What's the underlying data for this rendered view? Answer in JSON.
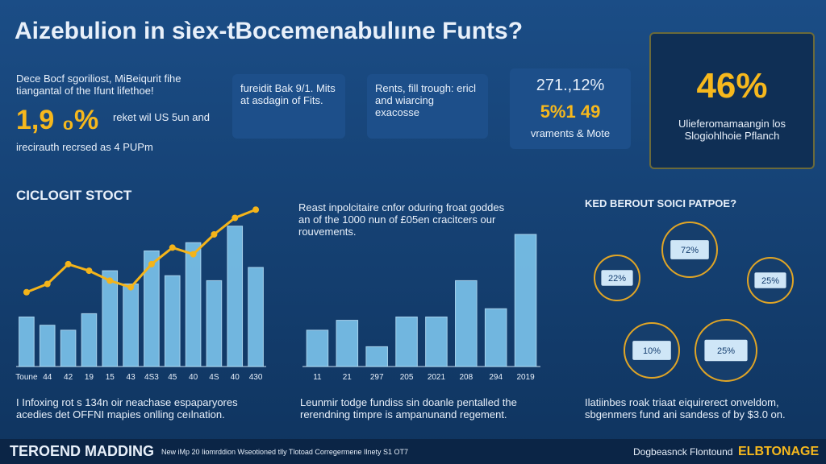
{
  "title": "Aizebulion in sìex-tBocemenabulııne Funts?",
  "intro": {
    "text": "Dece Bocf sgoriliost, MiBeiqurit fihe tiangantal of the Ifunt lifethoe!",
    "big": "1,9 ₀%",
    "line1": "reket wil US 5un and",
    "line2": "irecirauth recrsed as 4 PUPm"
  },
  "boxes": [
    {
      "text": "fureidit Bak 9/1. Mits at asdagin of Fits."
    },
    {
      "text": "Rents, fill trough: ericl and wiarcing exacosse"
    },
    {
      "big": "271.,12%",
      "mid": "5%1 49",
      "text": "vraments & Mote"
    }
  ],
  "highlight": {
    "big": "46%",
    "text": "Ulieferomamaangin los Slogiohlhoie Pflanch"
  },
  "sections": [
    {
      "heading": "CICLOGIT STOCT",
      "footer": "I Infoxing rot s 134n oir neachase espaparyores acedies det OFFNI mapies onlling ceılnation."
    },
    {
      "heading": "Reast inpolcitaire cnfor oduring froat goddes an of the 1000 nun of £05en cracitcers our rouvements.",
      "footer": "Leunmir todge fundiss sin doanle pentalled the rerendning timpre is ampanunand regement."
    },
    {
      "heading": "KED BEROUT SOICI PATPOE?",
      "footer": "Ilatiinbes roak triaat eiquirerect onveldom, sbgenmers fund ani sandess of by $3.0 on."
    }
  ],
  "circles": [
    "72%",
    "22%",
    "25%",
    "10%",
    "25%"
  ],
  "footer": {
    "brand": "TEROEND MADDING",
    "note": "New iMp 20 Iiomrddion Wseotioned tlly Tlotoad Corregermene Ilnety S1 OT7",
    "right": "Dogbeasnck Flontound",
    "logo": "ELBTONAGE"
  },
  "chart_data": [
    {
      "type": "bar",
      "categories": [
        "Toune",
        "44",
        "42",
        "19",
        "15",
        "43",
        "4S3",
        "45",
        "40",
        "4S",
        "40",
        "430"
      ],
      "series": [
        {
          "color": "#7cc4ec",
          "values": [
            30,
            25,
            22,
            32,
            58,
            50,
            70,
            55,
            75,
            52,
            85,
            60
          ]
        },
        {
          "color": "#f4b41a",
          "values": [
            45,
            50,
            62,
            58,
            52,
            48,
            62,
            72,
            68,
            80,
            90,
            95
          ]
        }
      ],
      "ylim": [
        0,
        100
      ]
    },
    {
      "type": "bar",
      "categories": [
        "11",
        "21",
        "297",
        "205",
        "2021",
        "208",
        "294",
        "2019"
      ],
      "series": [
        {
          "color": "#7cc4ec",
          "values": [
            22,
            28,
            12,
            30,
            30,
            52,
            35,
            80
          ]
        }
      ],
      "ylim": [
        0,
        100
      ]
    }
  ]
}
